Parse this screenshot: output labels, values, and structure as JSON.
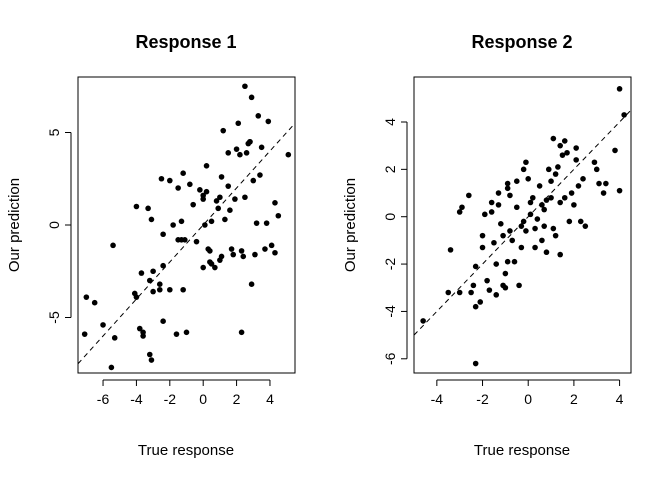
{
  "chart_data": [
    {
      "type": "scatter",
      "title": "Response 1",
      "xlabel": "True response",
      "ylabel": "Our prediction",
      "xlim": [
        -7.5,
        5.5
      ],
      "ylim": [
        -8,
        8
      ],
      "xticks": [
        -6,
        -4,
        -2,
        0,
        2,
        4
      ],
      "yticks": [
        -5,
        0,
        5
      ],
      "grid": false,
      "reference_line": {
        "style": "dashed",
        "slope": 1,
        "intercept": 0
      },
      "points": [
        [
          -7.0,
          -3.9
        ],
        [
          -6.5,
          -4.2
        ],
        [
          -7.1,
          -5.9
        ],
        [
          -6.0,
          -5.4
        ],
        [
          -5.5,
          -7.7
        ],
        [
          -5.3,
          -6.1
        ],
        [
          -5.4,
          -1.1
        ],
        [
          -4.1,
          -3.7
        ],
        [
          -4.0,
          -3.9
        ],
        [
          -4.0,
          1.0
        ],
        [
          -3.8,
          -5.6
        ],
        [
          -3.7,
          -2.6
        ],
        [
          -3.6,
          -5.8
        ],
        [
          -3.6,
          -6.0
        ],
        [
          -3.2,
          -7.0
        ],
        [
          -3.1,
          -7.3
        ],
        [
          -3.0,
          -3.6
        ],
        [
          -3.0,
          -2.5
        ],
        [
          -3.2,
          -3.0
        ],
        [
          -3.1,
          0.3
        ],
        [
          -3.3,
          0.9
        ],
        [
          -2.4,
          -5.2
        ],
        [
          -2.6,
          -3.2
        ],
        [
          -2.4,
          -2.2
        ],
        [
          -2.6,
          -3.5
        ],
        [
          -2.4,
          -0.5
        ],
        [
          -2.0,
          2.4
        ],
        [
          -2.0,
          -3.5
        ],
        [
          -2.5,
          2.5
        ],
        [
          -1.8,
          0.0
        ],
        [
          -1.5,
          -0.8
        ],
        [
          -1.3,
          0.2
        ],
        [
          -1.1,
          -0.8
        ],
        [
          -1.3,
          -0.8
        ],
        [
          -1.5,
          2.0
        ],
        [
          -1.6,
          -5.9
        ],
        [
          -1.0,
          -5.8
        ],
        [
          -1.2,
          -3.5
        ],
        [
          -1.2,
          2.8
        ],
        [
          -0.8,
          2.2
        ],
        [
          -0.6,
          1.1
        ],
        [
          -0.4,
          -0.9
        ],
        [
          -0.2,
          1.9
        ],
        [
          0.0,
          1.4
        ],
        [
          0.0,
          1.6
        ],
        [
          0.2,
          1.8
        ],
        [
          0.0,
          -2.3
        ],
        [
          0.2,
          3.2
        ],
        [
          0.3,
          -1.3
        ],
        [
          0.1,
          0.0
        ],
        [
          0.4,
          -1.4
        ],
        [
          0.4,
          -2.0
        ],
        [
          0.5,
          0.2
        ],
        [
          0.5,
          -2.1
        ],
        [
          0.7,
          -2.3
        ],
        [
          0.8,
          1.3
        ],
        [
          1.0,
          -1.9
        ],
        [
          0.9,
          0.9
        ],
        [
          1.0,
          1.5
        ],
        [
          1.1,
          2.6
        ],
        [
          1.1,
          -1.7
        ],
        [
          1.2,
          5.1
        ],
        [
          1.3,
          0.3
        ],
        [
          1.5,
          3.9
        ],
        [
          1.5,
          2.1
        ],
        [
          1.6,
          0.8
        ],
        [
          1.7,
          -1.3
        ],
        [
          1.8,
          -1.6
        ],
        [
          1.9,
          1.4
        ],
        [
          2.0,
          4.1
        ],
        [
          2.1,
          5.5
        ],
        [
          2.2,
          3.8
        ],
        [
          2.3,
          -5.8
        ],
        [
          2.3,
          -1.4
        ],
        [
          2.4,
          -1.7
        ],
        [
          2.5,
          1.5
        ],
        [
          2.5,
          7.5
        ],
        [
          2.6,
          3.9
        ],
        [
          2.7,
          4.4
        ],
        [
          2.8,
          4.5
        ],
        [
          2.8,
          4.5
        ],
        [
          2.9,
          6.9
        ],
        [
          2.9,
          -3.2
        ],
        [
          3.0,
          2.4
        ],
        [
          3.1,
          -1.6
        ],
        [
          3.2,
          0.1
        ],
        [
          3.3,
          5.9
        ],
        [
          3.4,
          2.7
        ],
        [
          3.5,
          4.2
        ],
        [
          3.7,
          -1.3
        ],
        [
          3.8,
          0.1
        ],
        [
          3.9,
          5.6
        ],
        [
          4.1,
          -1.1
        ],
        [
          4.3,
          -1.5
        ],
        [
          4.3,
          1.2
        ],
        [
          4.5,
          0.5
        ],
        [
          5.1,
          3.8
        ]
      ]
    },
    {
      "type": "scatter",
      "title": "Response 2",
      "xlabel": "True response",
      "ylabel": "Our prediction",
      "xlim": [
        -5,
        4.5
      ],
      "ylim": [
        -6.6,
        5.9
      ],
      "xticks": [
        -4,
        -2,
        0,
        2,
        4
      ],
      "yticks": [
        -6,
        -4,
        -2,
        0,
        2,
        4
      ],
      "grid": false,
      "reference_line": {
        "style": "dashed",
        "slope": 1,
        "intercept": 0
      },
      "points": [
        [
          -4.6,
          -4.4
        ],
        [
          -3.5,
          -3.2
        ],
        [
          -3.4,
          -1.4
        ],
        [
          -3.0,
          0.2
        ],
        [
          -2.9,
          0.4
        ],
        [
          -3.0,
          -3.2
        ],
        [
          -2.6,
          0.9
        ],
        [
          -2.5,
          -3.2
        ],
        [
          -2.4,
          -2.9
        ],
        [
          -2.3,
          -6.2
        ],
        [
          -2.3,
          -3.8
        ],
        [
          -2.3,
          -2.1
        ],
        [
          -2.1,
          -3.6
        ],
        [
          -2.0,
          -1.3
        ],
        [
          -2.0,
          -0.8
        ],
        [
          -1.9,
          0.1
        ],
        [
          -1.8,
          -2.7
        ],
        [
          -1.7,
          -3.1
        ],
        [
          -1.6,
          0.6
        ],
        [
          -1.6,
          0.2
        ],
        [
          -1.5,
          -1.1
        ],
        [
          -1.4,
          -3.3
        ],
        [
          -1.4,
          -2.0
        ],
        [
          -1.3,
          0.5
        ],
        [
          -1.3,
          1.0
        ],
        [
          -1.2,
          -0.3
        ],
        [
          -1.1,
          -0.8
        ],
        [
          -1.1,
          -2.9
        ],
        [
          -1.0,
          -3.0
        ],
        [
          -1.0,
          -2.4
        ],
        [
          -0.9,
          -1.9
        ],
        [
          -0.9,
          1.2
        ],
        [
          -0.9,
          1.4
        ],
        [
          -0.8,
          0.9
        ],
        [
          -0.8,
          -0.6
        ],
        [
          -0.7,
          -1.0
        ],
        [
          -0.6,
          -1.9
        ],
        [
          -0.5,
          0.4
        ],
        [
          -0.5,
          1.5
        ],
        [
          -0.4,
          -2.9
        ],
        [
          -0.3,
          -0.4
        ],
        [
          -0.3,
          -1.3
        ],
        [
          -0.2,
          2.0
        ],
        [
          -0.2,
          -0.2
        ],
        [
          -0.1,
          -0.6
        ],
        [
          -0.1,
          2.3
        ],
        [
          0.0,
          1.6
        ],
        [
          0.1,
          0.6
        ],
        [
          0.1,
          0.1
        ],
        [
          0.2,
          0.8
        ],
        [
          0.3,
          -1.3
        ],
        [
          0.3,
          -0.5
        ],
        [
          0.4,
          -0.1
        ],
        [
          0.5,
          1.3
        ],
        [
          0.6,
          0.5
        ],
        [
          0.6,
          -1.0
        ],
        [
          0.7,
          0.3
        ],
        [
          0.7,
          -0.4
        ],
        [
          0.8,
          0.7
        ],
        [
          0.8,
          -1.5
        ],
        [
          0.9,
          2.0
        ],
        [
          1.0,
          0.8
        ],
        [
          1.0,
          1.5
        ],
        [
          1.1,
          3.3
        ],
        [
          1.1,
          -0.5
        ],
        [
          1.2,
          -0.8
        ],
        [
          1.2,
          1.8
        ],
        [
          1.3,
          2.1
        ],
        [
          1.4,
          0.6
        ],
        [
          1.4,
          3.0
        ],
        [
          1.4,
          -1.6
        ],
        [
          1.5,
          2.6
        ],
        [
          1.6,
          3.2
        ],
        [
          1.6,
          0.8
        ],
        [
          1.7,
          2.7
        ],
        [
          1.8,
          -0.2
        ],
        [
          1.9,
          1.0
        ],
        [
          2.0,
          0.5
        ],
        [
          2.1,
          2.4
        ],
        [
          2.1,
          2.9
        ],
        [
          2.2,
          1.3
        ],
        [
          2.3,
          -0.2
        ],
        [
          2.4,
          1.6
        ],
        [
          2.5,
          -0.4
        ],
        [
          2.9,
          2.3
        ],
        [
          3.0,
          2.0
        ],
        [
          3.1,
          1.4
        ],
        [
          3.3,
          1.0
        ],
        [
          3.4,
          1.4
        ],
        [
          3.8,
          2.8
        ],
        [
          4.0,
          5.4
        ],
        [
          4.0,
          1.1
        ],
        [
          4.2,
          4.3
        ]
      ]
    }
  ]
}
